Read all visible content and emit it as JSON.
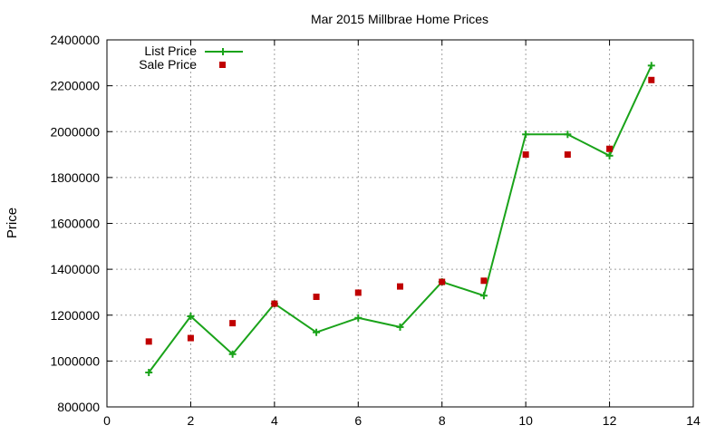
{
  "chart_data": {
    "type": "line",
    "title": "Mar 2015 Millbrae Home Prices",
    "xlabel": "",
    "ylabel": "Price",
    "xlim": [
      0,
      14
    ],
    "ylim": [
      800000,
      2400000
    ],
    "x_ticks": [
      0,
      2,
      4,
      6,
      8,
      10,
      12,
      14
    ],
    "y_ticks": [
      800000,
      1000000,
      1200000,
      1400000,
      1600000,
      1800000,
      2000000,
      2200000,
      2400000
    ],
    "grid": true,
    "legend_position": "top-left",
    "series": [
      {
        "name": "List Price",
        "style": "line-with-plus-markers",
        "color": "#1aa31a",
        "x": [
          1,
          2,
          3,
          4,
          5,
          6,
          7,
          8,
          9,
          10,
          11,
          12,
          13
        ],
        "values": [
          950000,
          1195000,
          1030000,
          1250000,
          1125000,
          1188000,
          1148000,
          1345000,
          1285000,
          1988000,
          1988000,
          1895000,
          2288000
        ]
      },
      {
        "name": "Sale Price",
        "style": "square-markers",
        "color": "#c00000",
        "x": [
          1,
          2,
          3,
          4,
          5,
          6,
          7,
          8,
          9,
          10,
          11,
          12,
          13
        ],
        "values": [
          1085000,
          1100000,
          1165000,
          1250000,
          1280000,
          1298000,
          1325000,
          1345000,
          1350000,
          1900000,
          1900000,
          1925000,
          2225000
        ]
      }
    ]
  }
}
